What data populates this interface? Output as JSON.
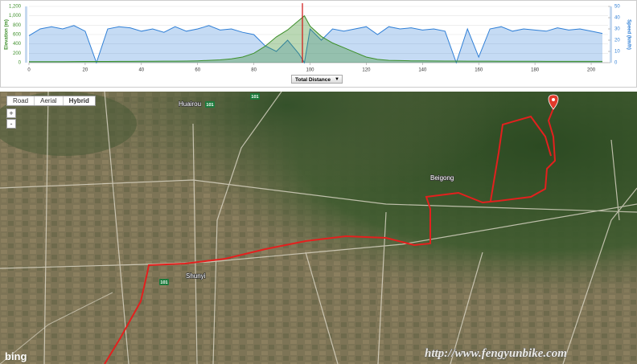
{
  "chart_data": {
    "type": "line",
    "ylabel": "Elevation (m)",
    "y2label": "Speed (km/h)",
    "x_selector": "Total Distance",
    "x": [
      0,
      4,
      8,
      12,
      16,
      20,
      24,
      28,
      32,
      36,
      40,
      44,
      48,
      52,
      56,
      60,
      64,
      68,
      72,
      76,
      80,
      84,
      88,
      92,
      96,
      98,
      100,
      104,
      108,
      112,
      116,
      120,
      124,
      128,
      132,
      136,
      140,
      144,
      148,
      152,
      156,
      160,
      164,
      168,
      172,
      176,
      180,
      184,
      188,
      192,
      196,
      200,
      204
    ],
    "series": [
      {
        "name": "Speed",
        "axis": "y2",
        "color": "#2f7fd6",
        "values": [
          24,
          30,
          32,
          30,
          33,
          28,
          0,
          30,
          32,
          31,
          28,
          30,
          27,
          32,
          28,
          30,
          33,
          29,
          30,
          27,
          25,
          15,
          10,
          20,
          8,
          0,
          30,
          20,
          30,
          28,
          30,
          32,
          25,
          32,
          30,
          31,
          29,
          30,
          28,
          0,
          30,
          5,
          30,
          32,
          28,
          30,
          29,
          28,
          31,
          29,
          30,
          28,
          26
        ]
      },
      {
        "name": "Elevation",
        "color": "#3d8f2a",
        "values": [
          20,
          20,
          22,
          22,
          24,
          25,
          25,
          26,
          28,
          28,
          30,
          30,
          32,
          32,
          35,
          40,
          50,
          60,
          80,
          120,
          200,
          350,
          550,
          700,
          900,
          1000,
          780,
          560,
          420,
          320,
          220,
          120,
          70,
          50,
          45,
          40,
          38,
          36,
          35,
          34,
          33,
          32,
          32,
          30,
          30,
          30,
          30,
          28,
          28,
          28,
          28,
          28,
          28
        ]
      }
    ],
    "xlim": [
      0,
      206
    ],
    "xticks": [
      0,
      20,
      40,
      60,
      80,
      100,
      120,
      140,
      160,
      180,
      200
    ],
    "ylim": [
      0,
      1200
    ],
    "yticks": [
      0,
      200,
      400,
      600,
      800,
      {
        "value": 1000,
        "label": "1,000"
      },
      {
        "value": 1200,
        "label": "1,200"
      }
    ],
    "y2lim": [
      0,
      50
    ],
    "y2ticks": [
      0,
      10,
      20,
      30,
      40,
      50
    ],
    "grid": true
  },
  "map": {
    "view_buttons": [
      "Road",
      "Aerial",
      "Hybrid"
    ],
    "zoom": [
      "+",
      "-"
    ],
    "places": [
      "Huairou",
      "Beigong",
      "Shunyi"
    ],
    "shields": [
      "101",
      "101",
      "101"
    ],
    "logo": "bing",
    "watermark": "http://www.fengyunbike.com"
  }
}
